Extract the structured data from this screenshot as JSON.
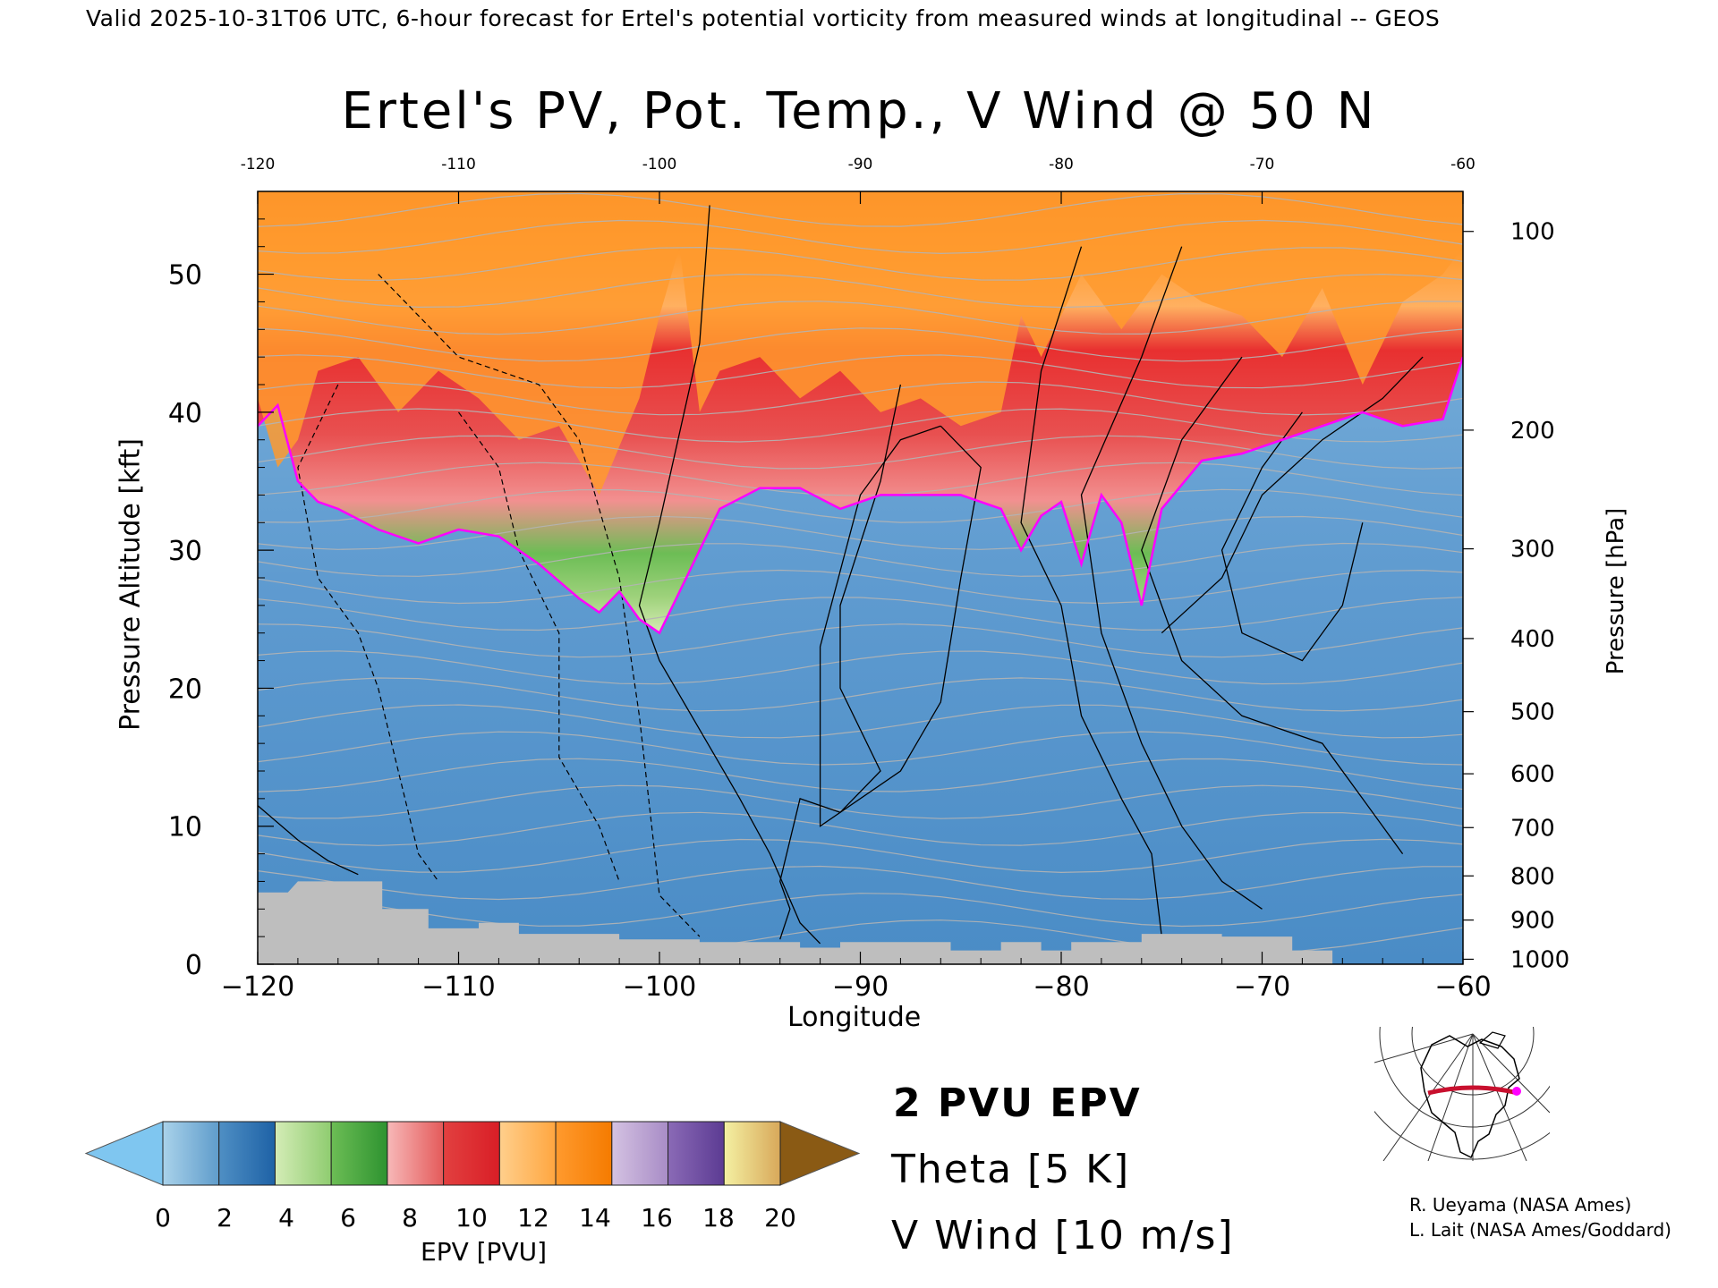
{
  "header": {
    "valid_line": "Valid 2025-10-31T06 UTC, 6-hour forecast for Ertel's potential vorticity from measured winds at longitudinal -- GEOS"
  },
  "chart_data": {
    "type": "heatmap",
    "title": "Ertel's PV, Pot. Temp., V Wind @ 50 N",
    "xlabel": "Longitude",
    "ylabel": "Pressure Altitude [kft]",
    "y2label": "Pressure [hPa]",
    "xlim": [
      -120,
      -60
    ],
    "ylim": [
      0,
      56
    ],
    "x_ticks": [
      -120,
      -110,
      -100,
      -90,
      -80,
      -70,
      -60
    ],
    "x_tick_labels": [
      "−120",
      "−110",
      "−100",
      "−90",
      "−80",
      "−70",
      "−60"
    ],
    "top_tick_labels": [
      "-120",
      "-110",
      "-100",
      "-90",
      "-80",
      "-70",
      "-60"
    ],
    "y_ticks": [
      0,
      10,
      20,
      30,
      40,
      50
    ],
    "y_tick_labels": [
      "0",
      "10",
      "20",
      "30",
      "40",
      "50"
    ],
    "pressure_ticks": [
      {
        "hpa": 100,
        "kft": 53.1
      },
      {
        "hpa": 200,
        "kft": 38.7
      },
      {
        "hpa": 300,
        "kft": 30.1
      },
      {
        "hpa": 400,
        "kft": 23.6
      },
      {
        "hpa": 500,
        "kft": 18.3
      },
      {
        "hpa": 600,
        "kft": 13.8
      },
      {
        "hpa": 700,
        "kft": 9.9
      },
      {
        "hpa": 800,
        "kft": 6.4
      },
      {
        "hpa": 900,
        "kft": 3.2
      },
      {
        "hpa": 1000,
        "kft": 0.36
      }
    ],
    "pressure_tick_labels": [
      "100",
      "200",
      "300",
      "400",
      "500",
      "600",
      "700",
      "800",
      "900",
      "1000"
    ],
    "colorbar": {
      "label": "EPV [PVU]",
      "ticks": [
        "0",
        "2",
        "4",
        "6",
        "8",
        "10",
        "12",
        "14",
        "16",
        "18",
        "20"
      ],
      "under_color": "#7fc6f0",
      "over_color": "#8a5a14",
      "bands": [
        [
          "#a9d2ea",
          "#5f9ccb"
        ],
        [
          "#4f8fc4",
          "#1e62a6"
        ],
        [
          "#d4ecb6",
          "#8fcc70"
        ],
        [
          "#6cbd55",
          "#2e9330"
        ],
        [
          "#f7b8b8",
          "#e45a5a"
        ],
        [
          "#e24040",
          "#d91e26"
        ],
        [
          "#ffcf8c",
          "#ffa640"
        ],
        [
          "#ff9a2e",
          "#f57b00"
        ],
        [
          "#d4c2e2",
          "#a88cc6"
        ],
        [
          "#8a6ab6",
          "#5c3b93"
        ],
        [
          "#f4f0a2",
          "#d8a85a"
        ]
      ]
    },
    "tropopause_2pvu": [
      [
        -120,
        39
      ],
      [
        -119,
        40.5
      ],
      [
        -118,
        35
      ],
      [
        -117,
        33.5
      ],
      [
        -116,
        33
      ],
      [
        -114,
        31.5
      ],
      [
        -112,
        30.5
      ],
      [
        -110,
        31.5
      ],
      [
        -108,
        31
      ],
      [
        -106,
        29
      ],
      [
        -104,
        26.5
      ],
      [
        -103,
        25.5
      ],
      [
        -102,
        27
      ],
      [
        -101,
        25
      ],
      [
        -100,
        24
      ],
      [
        -99,
        27
      ],
      [
        -98,
        30
      ],
      [
        -97,
        33
      ],
      [
        -95,
        34.5
      ],
      [
        -93,
        34.5
      ],
      [
        -91,
        33
      ],
      [
        -89,
        34
      ],
      [
        -87,
        34
      ],
      [
        -85,
        34
      ],
      [
        -83,
        33
      ],
      [
        -82,
        30
      ],
      [
        -81,
        32.5
      ],
      [
        -80,
        33.5
      ],
      [
        -79,
        29
      ],
      [
        -78,
        34
      ],
      [
        -77,
        32
      ],
      [
        -76,
        26
      ],
      [
        -75,
        33
      ],
      [
        -73,
        36.5
      ],
      [
        -71,
        37
      ],
      [
        -69,
        38
      ],
      [
        -67,
        39
      ],
      [
        -65,
        40
      ],
      [
        -63,
        39
      ],
      [
        -61,
        39.5
      ],
      [
        -60,
        44
      ]
    ],
    "boundary_kft": [
      [
        -120,
        41
      ],
      [
        -119,
        36
      ],
      [
        -118,
        38
      ],
      [
        -117,
        43
      ],
      [
        -115,
        44
      ],
      [
        -113,
        40
      ],
      [
        -111,
        43
      ],
      [
        -109,
        41
      ],
      [
        -107,
        38
      ],
      [
        -105,
        39
      ],
      [
        -103,
        34
      ],
      [
        -101,
        41
      ],
      [
        -100,
        47
      ],
      [
        -99,
        52
      ],
      [
        -98,
        40
      ],
      [
        -97,
        43
      ],
      [
        -95,
        44
      ],
      [
        -93,
        41
      ],
      [
        -91,
        43
      ],
      [
        -89,
        40
      ],
      [
        -87,
        41
      ],
      [
        -85,
        39
      ],
      [
        -83,
        40
      ],
      [
        -82,
        47
      ],
      [
        -81,
        44
      ],
      [
        -79,
        50
      ],
      [
        -77,
        46
      ],
      [
        -75,
        50
      ],
      [
        -73,
        48
      ],
      [
        -71,
        47
      ],
      [
        -69,
        44
      ],
      [
        -67,
        49
      ],
      [
        -65,
        42
      ],
      [
        -63,
        48
      ],
      [
        -61,
        50
      ],
      [
        -60,
        52
      ]
    ],
    "v_wind_contours_ms": [
      "0",
      "10",
      "20",
      "30",
      "40",
      "-10"
    ],
    "theta_contours_k": [
      "280",
      "310",
      "320",
      "330",
      "370",
      "380",
      "390",
      "400",
      "410",
      "420"
    ],
    "surface_kft": [
      [
        -120,
        5.2
      ],
      [
        -118.5,
        5.2
      ],
      [
        -118,
        6.0
      ],
      [
        -115.5,
        6.0
      ],
      [
        -113.8,
        6.0
      ],
      [
        -113.8,
        4.0
      ],
      [
        -111.5,
        4.0
      ],
      [
        -111.5,
        2.6
      ],
      [
        -109,
        2.6
      ],
      [
        -109,
        3.0
      ],
      [
        -107,
        3.0
      ],
      [
        -107,
        2.2
      ],
      [
        -102,
        2.2
      ],
      [
        -102,
        1.8
      ],
      [
        -98,
        1.8
      ],
      [
        -98,
        1.6
      ],
      [
        -93,
        1.6
      ],
      [
        -93,
        1.2
      ],
      [
        -91,
        1.2
      ],
      [
        -91,
        1.6
      ],
      [
        -85.5,
        1.6
      ],
      [
        -85.5,
        1.0
      ],
      [
        -83,
        1.0
      ],
      [
        -83,
        1.6
      ],
      [
        -81,
        1.6
      ],
      [
        -81,
        1.0
      ],
      [
        -79.5,
        1.0
      ],
      [
        -79.5,
        1.6
      ],
      [
        -76,
        1.6
      ],
      [
        -76,
        2.2
      ],
      [
        -72,
        2.2
      ],
      [
        -72,
        2.0
      ],
      [
        -68.5,
        2.0
      ],
      [
        -68.5,
        1.0
      ],
      [
        -66.5,
        1.0
      ],
      [
        -66.5,
        0.0
      ]
    ]
  },
  "legend": {
    "epv_label": "2 PVU EPV",
    "epv_color": "#ff00ff",
    "theta_label": "Theta [5 K]",
    "theta_color": "#b4b4b4",
    "wind_label": "V Wind [10 m/s]",
    "wind_color": "#000000"
  },
  "credits": {
    "line1": "R. Ueyama (NASA Ames)",
    "line2": "L. Lait (NASA Ames/Goddard)"
  },
  "inset_map": {
    "icon": "north-america-polar-map-icon",
    "track_color": "#c8102e",
    "marker_color": "#ff00ff"
  }
}
